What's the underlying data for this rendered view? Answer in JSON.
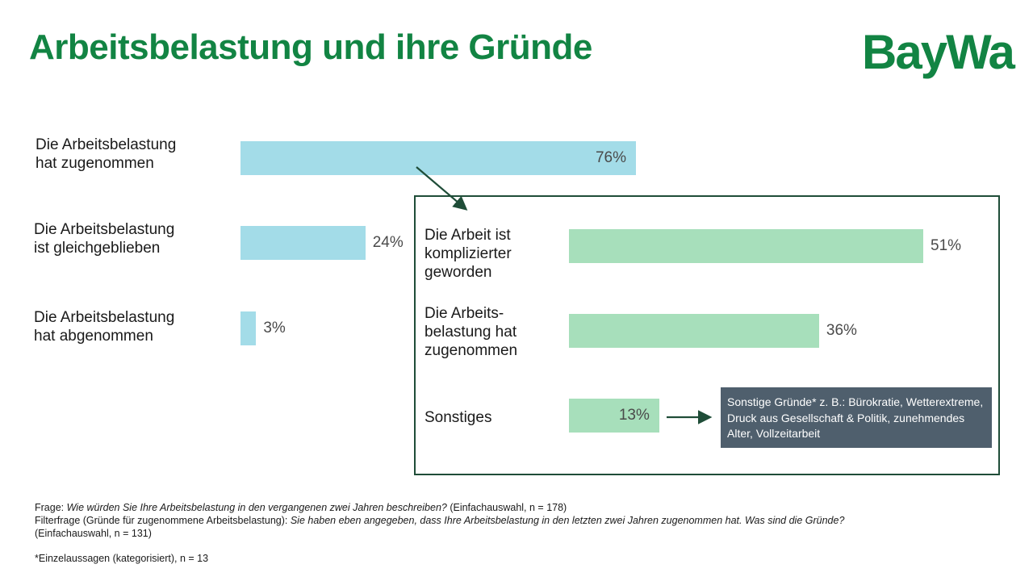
{
  "title": "Arbeitsbelastung und ihre Gründe",
  "logo_text": "BayWa",
  "colors": {
    "brand_green": "#128443",
    "bar_blue": "#a3dce8",
    "bar_green": "#a7dfbb",
    "note_bg": "#4f5f6d",
    "frame": "#1f4d38"
  },
  "chart_data": [
    {
      "type": "bar",
      "orientation": "horizontal",
      "categories": [
        "Die Arbeitsbelastung\nhat zugenommen",
        "Die Arbeitsbelastung\nist gleichgeblieben",
        "Die Arbeitsbelastung\nhat abgenommen"
      ],
      "values": [
        76,
        24,
        3
      ],
      "value_labels": [
        "76%",
        "24%",
        "3%"
      ],
      "xlim": [
        0,
        100
      ]
    },
    {
      "type": "bar",
      "orientation": "horizontal",
      "categories": [
        "Die Arbeit ist\nkomplizierter\ngeworden",
        "Die Arbeits-\nbelastung hat\nzugenommen",
        "Sonstiges"
      ],
      "values": [
        51,
        36,
        13
      ],
      "value_labels": [
        "51%",
        "36%",
        "13%"
      ],
      "xlim": [
        0,
        100
      ]
    }
  ],
  "note": "Sonstige Gründe* z. B.: Bürokratie, Wetterextreme, Druck aus Gesellschaft & Politik, zunehmendes Alter, Vollzeitarbeit",
  "footer": {
    "q1_prefix": "Frage: ",
    "q1_text": "Wie würden Sie Ihre Arbeitsbelastung in den vergangenen zwei Jahren beschreiben?",
    "q1_suffix": " (Einfachauswahl, n = 178)",
    "q2_prefix": "Filterfrage (Gründe für zugenommene Arbeitsbelastung): ",
    "q2_text": "Sie haben eben angegeben, dass Ihre Arbeitsbelastung in den letzten zwei Jahren zugenommen hat. Was sind die Gründe?",
    "q2_suffix": "(Einfachauswahl, n = 131)",
    "footnote": "*Einzelaussagen (kategorisiert), n = 13"
  }
}
